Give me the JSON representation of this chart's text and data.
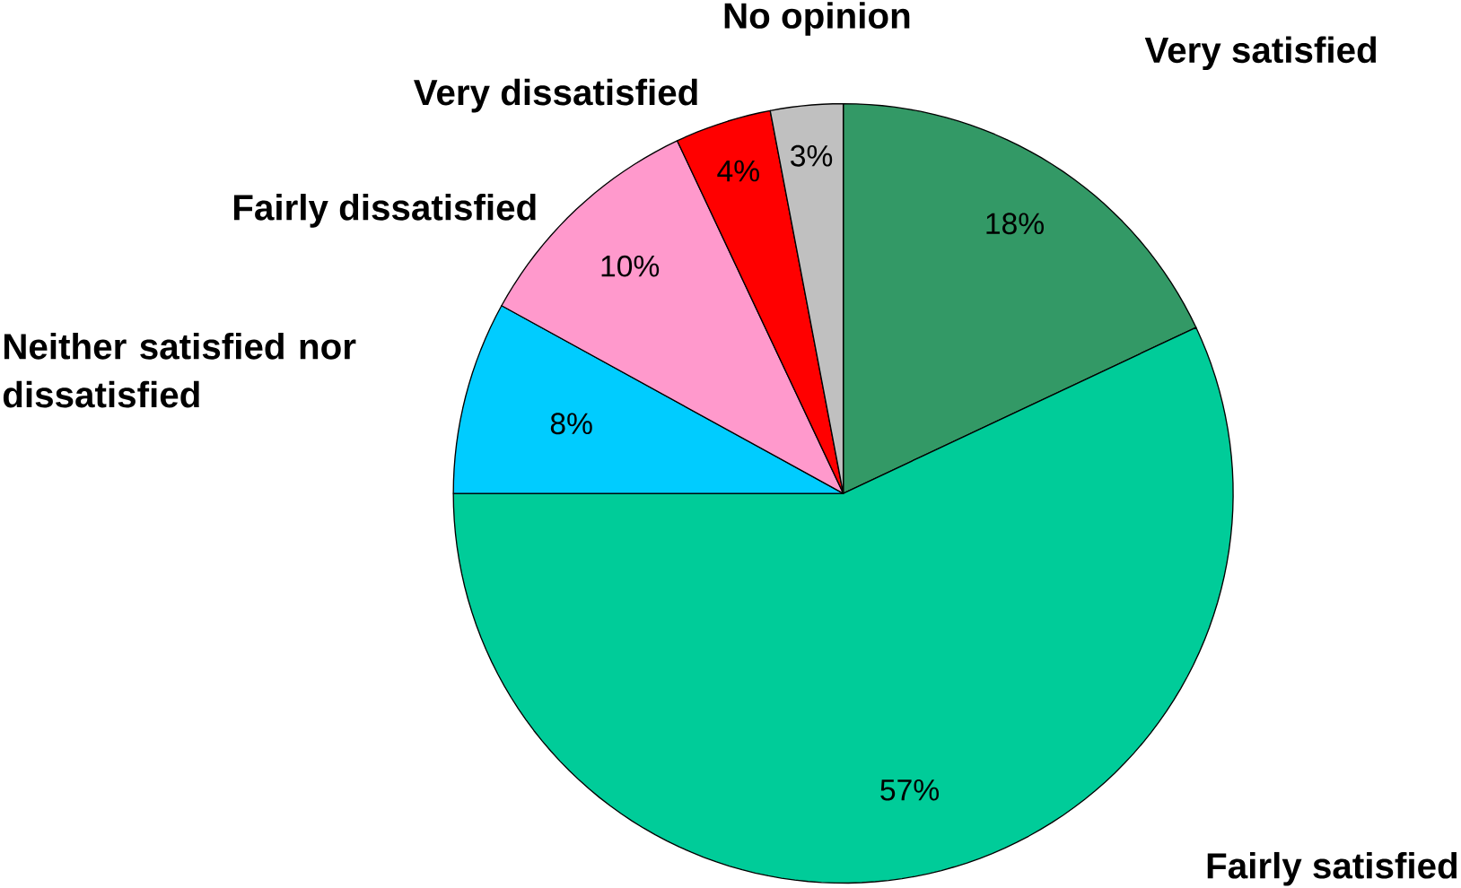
{
  "chart_data": {
    "type": "pie",
    "categories": [
      "Very satisfied",
      "Fairly satisfied",
      "Neither satisfied nor dissatisfied",
      "Fairly dissatisfied",
      "Very dissatisfied",
      "No opinion"
    ],
    "values": [
      18,
      57,
      8,
      10,
      4,
      3
    ],
    "colors": [
      "#339966",
      "#00cc99",
      "#00ccff",
      "#ff99cc",
      "#ff0000",
      "#c0c0c0"
    ],
    "value_labels": [
      "18%",
      "57%",
      "8%",
      "10%",
      "4%",
      "3%"
    ]
  }
}
